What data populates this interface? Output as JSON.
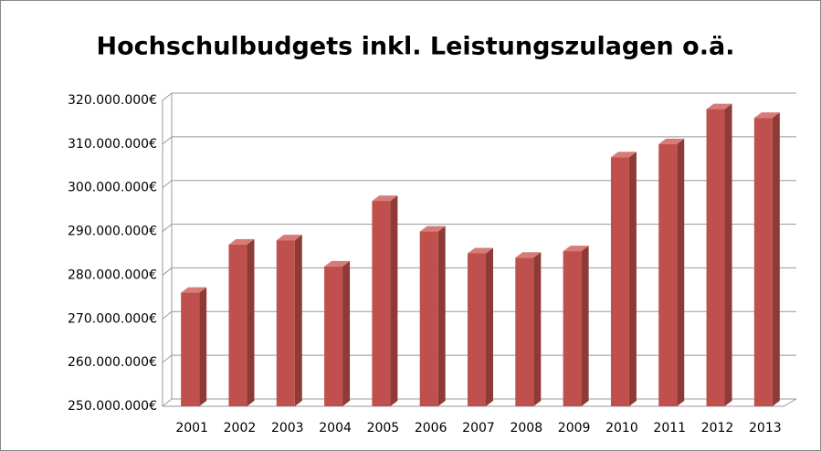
{
  "chart_data": {
    "type": "bar3d",
    "title": "Hochschulbudgets inkl. Leistungszulagen o.ä.",
    "categories": [
      "2001",
      "2002",
      "2003",
      "2004",
      "2005",
      "2006",
      "2007",
      "2008",
      "2009",
      "2010",
      "2011",
      "2012",
      "2013"
    ],
    "values": [
      276000000,
      287000000,
      288000000,
      282000000,
      297000000,
      290000000,
      285000000,
      284000000,
      285500000,
      307000000,
      310000000,
      318000000,
      316000000
    ],
    "color": "#c0504d",
    "ylim": [
      250000000,
      320000000
    ],
    "yticks": [
      {
        "value": 250000000,
        "label": "250.000.000€"
      },
      {
        "value": 260000000,
        "label": "260.000.000€"
      },
      {
        "value": 270000000,
        "label": "270.000.000€"
      },
      {
        "value": 280000000,
        "label": "280.000.000€"
      },
      {
        "value": 290000000,
        "label": "290.000.000€"
      },
      {
        "value": 300000000,
        "label": "300.000.000€"
      },
      {
        "value": 310000000,
        "label": "310.000.000€"
      },
      {
        "value": 320000000,
        "label": "320.000.000€"
      }
    ],
    "grid": true
  }
}
